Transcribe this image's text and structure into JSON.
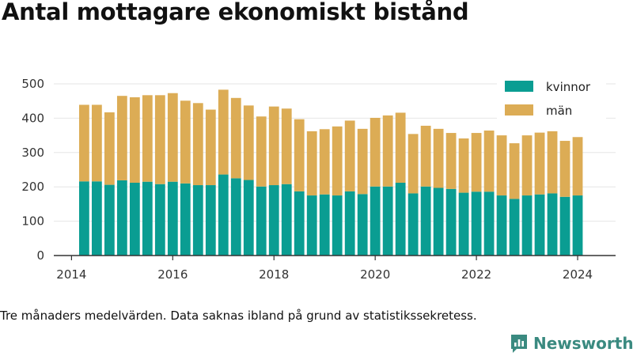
{
  "title": "Antal mottagare ekonomiskt bistånd",
  "note": "Tre månaders medelvärden. Data saknas ibland på grund av statistikssekretess.",
  "brand": "Newsworthy",
  "icons": {
    "brand": "newsworthy-logo-icon"
  },
  "colors": {
    "kvinnor": "#0a9d92",
    "man": "#dcac55",
    "axis": "#333333",
    "grid": "#e6e6e6",
    "brand": "#3a8a80"
  },
  "chart_data": {
    "type": "bar",
    "stacked": true,
    "title": "Antal mottagare ekonomiskt bistånd",
    "xlabel": "",
    "ylabel": "",
    "ylim": [
      0,
      500
    ],
    "yticks": [
      0,
      100,
      200,
      300,
      400,
      500
    ],
    "xticks": [
      2014,
      2016,
      2018,
      2020,
      2022,
      2024
    ],
    "xlim": [
      2013.65,
      2024.75
    ],
    "grid": "horizontal",
    "legend_position": "top-right",
    "x": [
      2014.25,
      2014.5,
      2014.75,
      2015.0,
      2015.25,
      2015.5,
      2015.75,
      2016.0,
      2016.25,
      2016.5,
      2016.75,
      2017.0,
      2017.25,
      2017.5,
      2017.75,
      2018.0,
      2018.25,
      2018.5,
      2018.75,
      2019.0,
      2019.25,
      2019.5,
      2019.75,
      2020.0,
      2020.25,
      2020.5,
      2020.75,
      2021.0,
      2021.25,
      2021.5,
      2021.75,
      2022.0,
      2022.25,
      2022.5,
      2022.75,
      2023.0,
      2023.25,
      2023.5,
      2023.75,
      2024.0
    ],
    "series": [
      {
        "name": "kvinnor",
        "color": "#0a9d92",
        "values": [
          216,
          216,
          206,
          219,
          212,
          215,
          208,
          215,
          210,
          205,
          205,
          236,
          225,
          220,
          201,
          205,
          208,
          187,
          175,
          178,
          175,
          187,
          179,
          201,
          201,
          212,
          181,
          201,
          197,
          194,
          183,
          186,
          186,
          175,
          165,
          175,
          178,
          181,
          171,
          175
        ]
      },
      {
        "name": "män",
        "color": "#dcac55",
        "values": [
          223,
          223,
          211,
          246,
          249,
          252,
          259,
          258,
          241,
          239,
          220,
          247,
          234,
          217,
          204,
          229,
          220,
          210,
          187,
          190,
          201,
          206,
          190,
          200,
          207,
          204,
          173,
          177,
          172,
          163,
          158,
          171,
          178,
          175,
          162,
          175,
          180,
          181,
          163,
          170
        ]
      }
    ]
  }
}
